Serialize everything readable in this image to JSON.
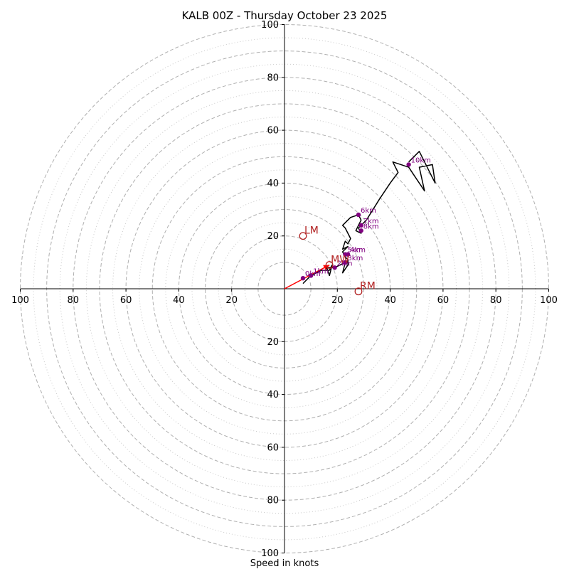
{
  "chart_data": {
    "type": "hodograph",
    "title": "KALB 00Z - Thursday October 23 2025",
    "xlabel": "Speed in knots",
    "units": "knots",
    "axis_range": [
      -100,
      100
    ],
    "x_tick_labels": [
      "100",
      "80",
      "60",
      "40",
      "20",
      "20",
      "40",
      "60",
      "80",
      "100"
    ],
    "y_tick_labels": [
      "100",
      "80",
      "60",
      "40",
      "20",
      "20",
      "40",
      "60",
      "80",
      "100"
    ],
    "grid": true,
    "rings_major": [
      10,
      20,
      30,
      40,
      50,
      60,
      70,
      80,
      90,
      100
    ],
    "rings_minor": [
      15,
      25,
      35,
      45,
      55,
      65,
      75,
      85,
      95
    ],
    "trace": [
      [
        7,
        2
      ],
      [
        9,
        4
      ],
      [
        10,
        5
      ],
      [
        14,
        7
      ],
      [
        17,
        7
      ],
      [
        18,
        9
      ],
      [
        17,
        5
      ],
      [
        16,
        8
      ],
      [
        19,
        8
      ],
      [
        21,
        9
      ],
      [
        23,
        10
      ],
      [
        22,
        6
      ],
      [
        24,
        9
      ],
      [
        24,
        11
      ],
      [
        23,
        12
      ],
      [
        22,
        14
      ],
      [
        24,
        16
      ],
      [
        22,
        15
      ],
      [
        23,
        18
      ],
      [
        24,
        17
      ],
      [
        25,
        19
      ],
      [
        23,
        23
      ],
      [
        22,
        24
      ],
      [
        25,
        27
      ],
      [
        28,
        28
      ],
      [
        29,
        26
      ],
      [
        28,
        24
      ],
      [
        27,
        22
      ],
      [
        29,
        21
      ],
      [
        28,
        23
      ],
      [
        31,
        26
      ],
      [
        36,
        34
      ],
      [
        40,
        40
      ],
      [
        43,
        44
      ],
      [
        41,
        48
      ],
      [
        47,
        46
      ],
      [
        53,
        37
      ],
      [
        51,
        46
      ],
      [
        56,
        47
      ],
      [
        57,
        40
      ],
      [
        54,
        46
      ],
      [
        51,
        52
      ],
      [
        47,
        48
      ]
    ],
    "height_markers": [
      {
        "label": "0km",
        "u": 7,
        "v": 4
      },
      {
        "label": "1km",
        "u": 10,
        "v": 5
      },
      {
        "label": "2km",
        "u": 19,
        "v": 8
      },
      {
        "label": "3km",
        "u": 23,
        "v": 10
      },
      {
        "label": "4km",
        "u": 24,
        "v": 13
      },
      {
        "label": "5km",
        "u": 23,
        "v": 13
      },
      {
        "label": "6km",
        "u": 28,
        "v": 28
      },
      {
        "label": "7km",
        "u": 29,
        "v": 24
      },
      {
        "label": "8km",
        "u": 29,
        "v": 22
      },
      {
        "label": "10km",
        "u": 47,
        "v": 47
      }
    ],
    "storm_motion": {
      "mean": {
        "label": "MW",
        "u": 17,
        "v": 9
      },
      "left_mover": {
        "label": "LM",
        "u": 7,
        "v": 20
      },
      "right_mover": {
        "label": "RM",
        "u": 28,
        "v": -1
      }
    },
    "colors": {
      "trace": "#000000",
      "height_marker": "#800080",
      "storm_motion": "#b22222",
      "mean_vector": "#ff0000",
      "grid_major": "#b0b0b0",
      "grid_minor": "#c8c8c8"
    }
  }
}
